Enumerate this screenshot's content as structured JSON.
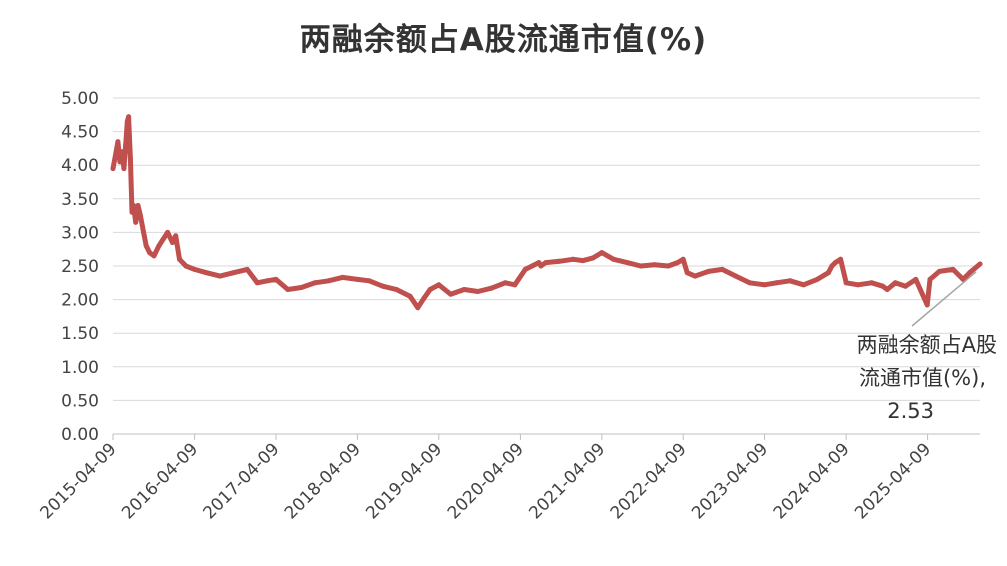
{
  "chart_data": {
    "type": "line",
    "title": "两融余额占A股流通市值(%)",
    "xlabel": "",
    "ylabel": "",
    "ylim": [
      0,
      5
    ],
    "yticks": [
      "0.00",
      "0.50",
      "1.00",
      "1.50",
      "2.00",
      "2.50",
      "3.00",
      "3.50",
      "4.00",
      "4.50",
      "5.00"
    ],
    "xticks": [
      "2015-04-09",
      "2016-04-09",
      "2017-04-09",
      "2018-04-09",
      "2019-04-09",
      "2020-04-09",
      "2021-04-09",
      "2022-04-09",
      "2023-04-09",
      "2024-04-09",
      "2025-04-09"
    ],
    "x_range": [
      "2015-04-09",
      "2025-11-30"
    ],
    "grid": "horizontal",
    "legend": "none",
    "series_color": "#C0504D",
    "series": [
      {
        "x": [
          "2015-04-09",
          "2015-04-20",
          "2015-05-01",
          "2015-05-10",
          "2015-05-20",
          "2015-05-28",
          "2015-06-05",
          "2015-06-12",
          "2015-06-18",
          "2015-06-26",
          "2015-07-03",
          "2015-07-10",
          "2015-07-20",
          "2015-07-30",
          "2015-08-10",
          "2015-08-24",
          "2015-09-05",
          "2015-09-20",
          "2015-10-10",
          "2015-11-01",
          "2015-11-20",
          "2015-12-10",
          "2016-01-01",
          "2016-01-15",
          "2016-02-01",
          "2016-03-01",
          "2016-04-09",
          "2016-06-01",
          "2016-08-01",
          "2016-10-01",
          "2016-12-01",
          "2017-01-15",
          "2017-03-01",
          "2017-04-09",
          "2017-06-01",
          "2017-08-01",
          "2017-10-01",
          "2017-12-01",
          "2018-02-01",
          "2018-04-09",
          "2018-06-01",
          "2018-08-01",
          "2018-10-01",
          "2018-12-01",
          "2019-01-05",
          "2019-02-01",
          "2019-03-01",
          "2019-04-09",
          "2019-06-01",
          "2019-08-01",
          "2019-10-01",
          "2019-12-01",
          "2020-02-01",
          "2020-03-15",
          "2020-05-01",
          "2020-07-01",
          "2020-07-10",
          "2020-08-01",
          "2020-10-01",
          "2020-12-01",
          "2021-01-15",
          "2021-03-01",
          "2021-04-09",
          "2021-06-01",
          "2021-08-01",
          "2021-10-01",
          "2021-12-01",
          "2022-02-01",
          "2022-03-15",
          "2022-04-09",
          "2022-04-27",
          "2022-06-01",
          "2022-08-01",
          "2022-10-01",
          "2022-12-01",
          "2023-02-01",
          "2023-04-09",
          "2023-06-01",
          "2023-08-01",
          "2023-10-01",
          "2023-12-01",
          "2024-01-20",
          "2024-02-05",
          "2024-02-20",
          "2024-03-15",
          "2024-04-09",
          "2024-06-01",
          "2024-08-01",
          "2024-09-20",
          "2024-10-10",
          "2024-11-15",
          "2024-12-31",
          "2025-02-15",
          "2025-04-07",
          "2025-04-20",
          "2025-06-01",
          "2025-08-01",
          "2025-09-15",
          "2025-10-15",
          "2025-11-30"
        ],
        "y": [
          3.95,
          4.15,
          4.35,
          4.05,
          4.2,
          3.95,
          4.3,
          4.65,
          4.72,
          4.1,
          3.3,
          3.4,
          3.15,
          3.4,
          3.25,
          3.0,
          2.8,
          2.7,
          2.65,
          2.8,
          2.9,
          3.0,
          2.85,
          2.95,
          2.6,
          2.5,
          2.45,
          2.4,
          2.35,
          2.4,
          2.45,
          2.25,
          2.28,
          2.3,
          2.15,
          2.18,
          2.25,
          2.28,
          2.33,
          2.3,
          2.28,
          2.2,
          2.15,
          2.05,
          1.88,
          2.02,
          2.15,
          2.22,
          2.08,
          2.15,
          2.12,
          2.17,
          2.25,
          2.22,
          2.45,
          2.55,
          2.5,
          2.55,
          2.57,
          2.6,
          2.58,
          2.62,
          2.7,
          2.6,
          2.55,
          2.5,
          2.52,
          2.5,
          2.55,
          2.6,
          2.4,
          2.35,
          2.42,
          2.45,
          2.35,
          2.25,
          2.22,
          2.25,
          2.28,
          2.22,
          2.3,
          2.4,
          2.5,
          2.55,
          2.6,
          2.25,
          2.22,
          2.25,
          2.2,
          2.15,
          2.25,
          2.2,
          2.3,
          1.92,
          2.3,
          2.42,
          2.45,
          2.3,
          2.4,
          2.53
        ]
      }
    ],
    "annotation": {
      "lines": [
        "两融余额占A股",
        "流通市值(%),",
        "2.53"
      ]
    }
  }
}
